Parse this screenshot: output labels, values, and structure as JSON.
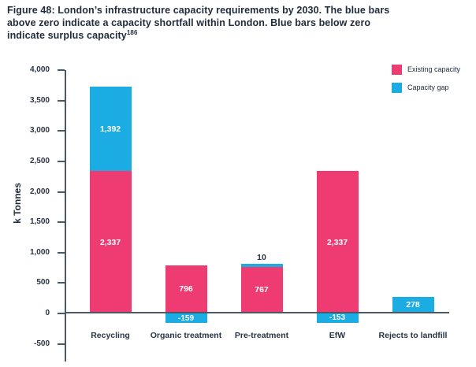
{
  "title": {
    "text": "Figure 48: London’s infrastructure capacity requirements by 2030. The blue bars\nabove zero indicate a capacity shortfall within London. Blue bars below zero\nindicate surplus capacity",
    "footnote_ref": "186"
  },
  "colors": {
    "existing_capacity": "#ee3b72",
    "capacity_gap": "#1bace3",
    "text": "#212d3d",
    "axis": "#4d5866"
  },
  "chart_data": {
    "type": "bar",
    "stacked": true,
    "title": "",
    "xlabel": "",
    "ylabel": "k Tonnes",
    "ylim": [
      -500,
      4000
    ],
    "ytick_step": 500,
    "grid": false,
    "legend_position": "top-right",
    "categories": [
      "Recycling",
      "Organic treatment",
      "Pre-treatment",
      "EfW",
      "Rejects to landfill"
    ],
    "series": [
      {
        "name": "Existing capacity",
        "color": "#ee3b72",
        "values": [
          2337,
          796,
          767,
          2337,
          0
        ]
      },
      {
        "name": "Capacity gap",
        "color": "#1bace3",
        "values": [
          1392,
          -159,
          10,
          -153,
          278
        ]
      }
    ],
    "value_labels": [
      [
        "2,337",
        "1,392"
      ],
      [
        "796",
        "-159"
      ],
      [
        "767",
        "10"
      ],
      [
        "2,337",
        "-153"
      ],
      [
        "",
        "278"
      ]
    ],
    "ytick_labels": [
      "4,000",
      "3,500",
      "3,000",
      "2,500",
      "2,000",
      "1,500",
      "1,000",
      "500",
      "0",
      "-500"
    ]
  }
}
